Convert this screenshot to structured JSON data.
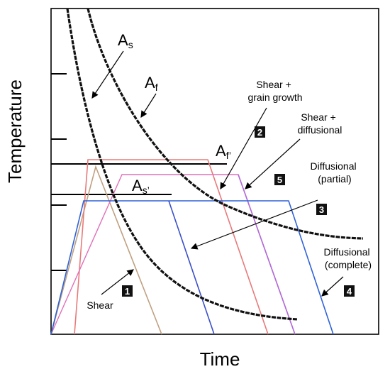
{
  "axes": {
    "x_title": "Time",
    "y_title": "Temperature"
  },
  "curves": {
    "as_label": {
      "main": "A",
      "sub": "s"
    },
    "af_label": {
      "main": "A",
      "sub": "f"
    },
    "af_prime_label": {
      "main": "A",
      "sub": "f’"
    },
    "as_prime_label": {
      "main": "A",
      "sub": "s’"
    }
  },
  "paths": [
    {
      "id": "1",
      "lines": [
        "Shear"
      ],
      "color": "#c0a080"
    },
    {
      "id": "2",
      "lines": [
        "Shear +",
        "grain growth"
      ],
      "color": "#e87a7a"
    },
    {
      "id": "5",
      "lines": [
        "Shear +",
        "diffusional"
      ],
      "color": "#b06ad8"
    },
    {
      "id": "3",
      "lines": [
        "Diffusional",
        "(partial)"
      ],
      "color": "#3a5fc8"
    },
    {
      "id": "4",
      "lines": [
        "Diffusional",
        "(complete)"
      ],
      "color": "#2f62d8"
    }
  ],
  "colors": {
    "frame": "#000000",
    "curve": "#111111",
    "badge": "#111111",
    "path_blue_left": "#3a4fc8",
    "path_blue_right": "#2f62d8",
    "path_red": "#e87a7a",
    "path_tan": "#c0a080",
    "path_purple": "#b06ad8",
    "path_pink": "#e070b8"
  }
}
